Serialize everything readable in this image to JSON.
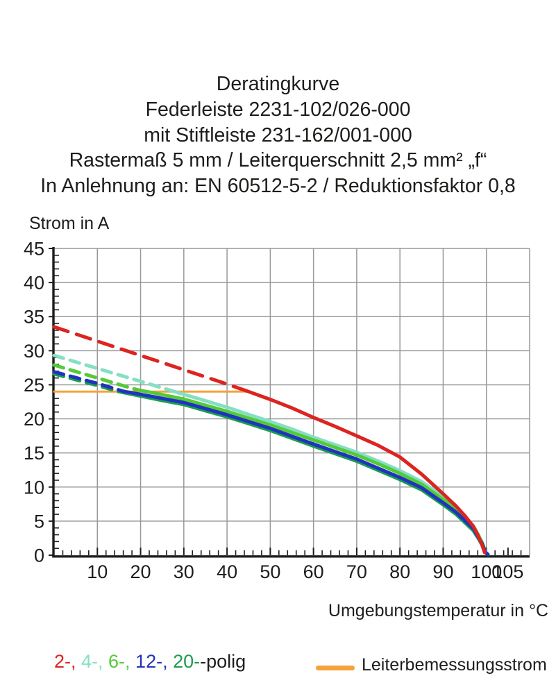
{
  "chart_data": {
    "type": "line",
    "title_lines": [
      "Deratingkurve",
      "Federleiste 2231-102/026-000",
      "mit Stiftleiste 231-162/001-000",
      "Rastermaß 5 mm / Leiterquerschnitt 2,5 mm² „f“",
      "In Anlehnung an: EN 60512-5-2 / Reduktionsfaktor 0,8"
    ],
    "ylabel": "Strom in A",
    "xlabel": "Umgebungstemperatur in °C",
    "xlim": [
      0,
      110
    ],
    "ylim": [
      0,
      45
    ],
    "x_major_ticks": [
      10,
      20,
      30,
      40,
      50,
      60,
      70,
      80,
      90,
      100,
      105
    ],
    "x_grid_ticks": [
      10,
      20,
      30,
      40,
      50,
      60,
      70,
      80,
      90,
      100
    ],
    "x_minor_step": 2,
    "y_major_ticks": [
      0,
      5,
      10,
      15,
      20,
      25,
      30,
      35,
      40,
      45
    ],
    "y_minor_step": 1,
    "grid": true,
    "grid_color": "#97999b",
    "axis_color": "#1d1d1b",
    "series": [
      {
        "name": "Leiterbemessungsstrom",
        "color": "#f5a23a",
        "width": 3,
        "dash_until_x": null,
        "points": [
          [
            0,
            24
          ],
          [
            44.8,
            24
          ]
        ]
      },
      {
        "name": "4-polig",
        "color": "#85dfc3",
        "width": 5,
        "dash_until_x": 26,
        "dash_pattern": "14 10",
        "points": [
          [
            0,
            29.3
          ],
          [
            5,
            28.35
          ],
          [
            10,
            27.4
          ],
          [
            15,
            26.45
          ],
          [
            20,
            25.5
          ],
          [
            26,
            24.35
          ],
          [
            30,
            23.6
          ],
          [
            35,
            22.65
          ],
          [
            40,
            21.7
          ],
          [
            45,
            20.65
          ],
          [
            50,
            19.6
          ],
          [
            55,
            18.5
          ],
          [
            60,
            17.3
          ],
          [
            65,
            16.2
          ],
          [
            70,
            15.1
          ],
          [
            75,
            13.8
          ],
          [
            80,
            12.4
          ],
          [
            85,
            10.8
          ],
          [
            90,
            8.6
          ],
          [
            93,
            7.0
          ],
          [
            95,
            5.7
          ],
          [
            97,
            4.3
          ],
          [
            98,
            3.2
          ],
          [
            99,
            1.9
          ],
          [
            99.8,
            0.5
          ],
          [
            100.3,
            0.15
          ]
        ]
      },
      {
        "name": "6-polig",
        "color": "#55ca38",
        "width": 5,
        "dash_until_x": 19,
        "dash_pattern": "14 10",
        "points": [
          [
            0,
            27.9
          ],
          [
            5,
            26.95
          ],
          [
            10,
            26.0
          ],
          [
            15,
            25.05
          ],
          [
            19,
            24.3
          ],
          [
            25,
            23.55
          ],
          [
            30,
            22.9
          ],
          [
            35,
            22.0
          ],
          [
            40,
            21.1
          ],
          [
            45,
            20.1
          ],
          [
            50,
            19.1
          ],
          [
            55,
            18.0
          ],
          [
            60,
            16.9
          ],
          [
            65,
            15.8
          ],
          [
            70,
            14.7
          ],
          [
            75,
            13.4
          ],
          [
            80,
            12.0
          ],
          [
            85,
            10.4
          ],
          [
            90,
            8.2
          ],
          [
            93,
            6.7
          ],
          [
            95,
            5.4
          ],
          [
            97,
            4.1
          ],
          [
            98,
            3.0
          ],
          [
            99,
            1.8
          ],
          [
            99.8,
            0.45
          ],
          [
            100.3,
            0.12
          ]
        ]
      },
      {
        "name": "20-polig",
        "color": "#1b9e4d",
        "width": 5,
        "dash_until_x": 15,
        "dash_pattern": "14 10",
        "points": [
          [
            0,
            26.6
          ],
          [
            5,
            25.75
          ],
          [
            10,
            24.9
          ],
          [
            15,
            24.0
          ],
          [
            20,
            23.35
          ],
          [
            25,
            22.7
          ],
          [
            30,
            22.1
          ],
          [
            35,
            21.2
          ],
          [
            40,
            20.3
          ],
          [
            45,
            19.3
          ],
          [
            50,
            18.3
          ],
          [
            55,
            17.15
          ],
          [
            60,
            16.0
          ],
          [
            65,
            14.9
          ],
          [
            70,
            13.8
          ],
          [
            75,
            12.45
          ],
          [
            80,
            11.1
          ],
          [
            85,
            9.6
          ],
          [
            90,
            7.4
          ],
          [
            93,
            6.0
          ],
          [
            95,
            4.8
          ],
          [
            97,
            3.6
          ],
          [
            98,
            2.6
          ],
          [
            99,
            1.5
          ],
          [
            99.8,
            0.35
          ],
          [
            100.4,
            0.1
          ]
        ]
      },
      {
        "name": "12-polig",
        "color": "#2033bf",
        "width": 5,
        "dash_until_x": 16,
        "dash_pattern": "14 10",
        "points": [
          [
            0,
            26.9
          ],
          [
            5,
            26.05
          ],
          [
            10,
            25.2
          ],
          [
            16,
            24.05
          ],
          [
            20,
            23.6
          ],
          [
            25,
            23.0
          ],
          [
            30,
            22.4
          ],
          [
            35,
            21.5
          ],
          [
            40,
            20.6
          ],
          [
            45,
            19.6
          ],
          [
            50,
            18.6
          ],
          [
            55,
            17.45
          ],
          [
            60,
            16.3
          ],
          [
            65,
            15.2
          ],
          [
            70,
            14.1
          ],
          [
            75,
            12.75
          ],
          [
            80,
            11.4
          ],
          [
            85,
            9.9
          ],
          [
            90,
            7.7
          ],
          [
            93,
            6.3
          ],
          [
            95,
            5.1
          ],
          [
            97,
            3.9
          ],
          [
            98,
            2.8
          ],
          [
            99,
            1.7
          ],
          [
            99.8,
            0.4
          ],
          [
            100.3,
            0.12
          ]
        ]
      },
      {
        "name": "2-polig",
        "color": "#dc2420",
        "width": 5,
        "dash_until_x": 45,
        "dash_pattern": "21 13",
        "points": [
          [
            0,
            33.5
          ],
          [
            5,
            32.45
          ],
          [
            10,
            31.4
          ],
          [
            15,
            30.35
          ],
          [
            20,
            29.3
          ],
          [
            25,
            28.25
          ],
          [
            30,
            27.2
          ],
          [
            35,
            26.15
          ],
          [
            40,
            25.1
          ],
          [
            45,
            24.0
          ],
          [
            50,
            22.85
          ],
          [
            55,
            21.6
          ],
          [
            60,
            20.2
          ],
          [
            65,
            18.9
          ],
          [
            70,
            17.5
          ],
          [
            75,
            16.1
          ],
          [
            80,
            14.4
          ],
          [
            85,
            11.9
          ],
          [
            90,
            9.0
          ],
          [
            93,
            7.2
          ],
          [
            95,
            5.8
          ],
          [
            97,
            4.2
          ],
          [
            98,
            3.0
          ],
          [
            99,
            1.5
          ],
          [
            99.6,
            0.4
          ]
        ]
      }
    ],
    "legend_position": "bottom"
  },
  "legend": {
    "poles": [
      {
        "label": "2-, ",
        "color": "#dc2420"
      },
      {
        "label": "4-, ",
        "color": "#85dfc3"
      },
      {
        "label": "6-, ",
        "color": "#55ca38"
      },
      {
        "label": "12-, ",
        "color": "#2033bf"
      },
      {
        "label": "20-",
        "color": "#1b9e4d"
      }
    ],
    "suffix": "-polig",
    "rating_label": "Leiterbemessungsstrom",
    "rating_color": "#f5a23a"
  }
}
